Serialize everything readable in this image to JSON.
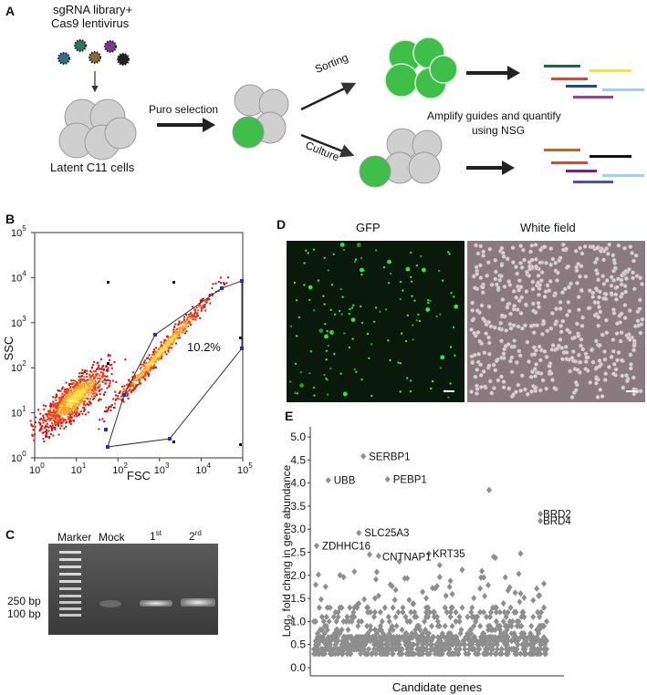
{
  "panel_labels": {
    "a": "A",
    "b": "B",
    "c": "C",
    "d": "D",
    "e": "E"
  },
  "panelA": {
    "virus_label_line1": "sgRNA library+",
    "virus_label_line2": "Cas9 lentivirus",
    "cells_label": "Latent C11 cells",
    "puro_label": "Puro selection",
    "sorting_label": "Sorting",
    "culture_label": "Culture",
    "amplify_line1": "Amplify guides and quantify",
    "amplify_line2": "using NSG",
    "virus_colors": [
      "#2c6e8c",
      "#2a7a5a",
      "#8a6a30",
      "#7a3a8a",
      "#222222"
    ],
    "guide_colors_top": [
      "#1a6a3a",
      "#f2e63a",
      "#e84030",
      "#1a4aa0",
      "#a0d0f0",
      "#c0308a"
    ],
    "guide_colors_bottom": [
      "#d06020",
      "#111111",
      "#e84030",
      "#7a2080",
      "#a0d0f0",
      "#5050b0"
    ]
  },
  "panelB": {
    "xlabel": "FSC",
    "ylabel": "SSC",
    "gate_percent": "10.2%",
    "x_ticks": [
      {
        "b": "10",
        "e": "0"
      },
      {
        "b": "10",
        "e": "1"
      },
      {
        "b": "10",
        "e": "2"
      },
      {
        "b": "10",
        "e": "3"
      },
      {
        "b": "10",
        "e": "4"
      },
      {
        "b": "10",
        "e": "5"
      }
    ],
    "y_ticks": [
      {
        "b": "10",
        "e": "0"
      },
      {
        "b": "10",
        "e": "1"
      },
      {
        "b": "10",
        "e": "2"
      },
      {
        "b": "10",
        "e": "3"
      },
      {
        "b": "10",
        "e": "4"
      },
      {
        "b": "10",
        "e": "5"
      }
    ]
  },
  "panelC": {
    "marker_label": "Marker",
    "mock_label": "Mock",
    "lane1_base": "1",
    "lane1_sup": "st",
    "lane2_base": "2",
    "lane2_sup": "rd",
    "size_250": "250 bp",
    "size_100": "100 bp"
  },
  "panelD": {
    "gfp_label": "GFP",
    "white_label": "White field"
  },
  "chart_data": {
    "type": "scatter",
    "xlabel": "Candidate genes",
    "ylabel_pre": "Log",
    "ylabel_sub": "2",
    "ylabel_post": " fold chang in gene abundance",
    "ylim": [
      0,
      5.0
    ],
    "y_ticks": [
      "0.0",
      "0.5",
      "1.0",
      "1.5",
      "2.0",
      "2.5",
      "3.0",
      "3.5",
      "4.0",
      "4.5",
      "5.0"
    ],
    "labeled_points": [
      {
        "name": "SERBP1",
        "x": 55,
        "y": 4.58
      },
      {
        "name": "UBB",
        "x": 16,
        "y": 4.06
      },
      {
        "name": "PEBP1",
        "x": 82,
        "y": 4.08
      },
      {
        "name": "BRD2",
        "x": 252,
        "y": 3.33
      },
      {
        "name": "BRD4",
        "x": 252,
        "y": 3.18
      },
      {
        "name": "SLC25A3",
        "x": 50,
        "y": 2.92
      },
      {
        "name": "ZDHHC16",
        "x": 3,
        "y": 2.64
      },
      {
        "name": "CNTNAP1",
        "x": 72,
        "y": 2.42
      },
      {
        "name": "KRT35",
        "x": 128,
        "y": 2.47
      }
    ],
    "extra_points": [
      {
        "x": 195,
        "y": 3.85
      },
      {
        "x": 230,
        "y": 2.47
      },
      {
        "x": 200,
        "y": 2.4
      },
      {
        "x": 202,
        "y": 2.38
      },
      {
        "x": 62,
        "y": 2.45
      },
      {
        "x": 95,
        "y": 2.3
      },
      {
        "x": 140,
        "y": 2.22
      },
      {
        "x": 45,
        "y": 2.08
      },
      {
        "x": 165,
        "y": 2.12
      }
    ],
    "gene_count": 260
  }
}
